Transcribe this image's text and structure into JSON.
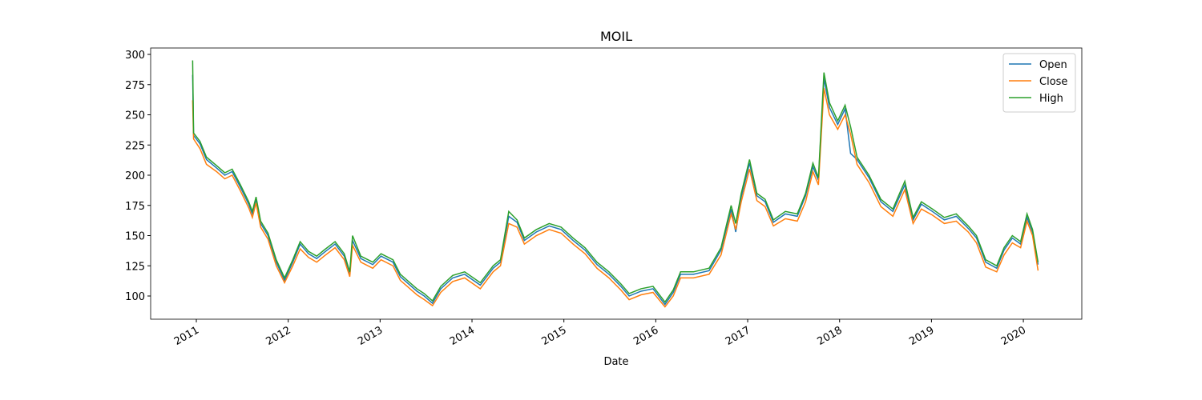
{
  "chart_data": {
    "type": "line",
    "title": "MOIL",
    "xlabel": "Date",
    "x": [
      2010.96,
      2010.97,
      2011.04,
      2011.11,
      2011.22,
      2011.31,
      2011.39,
      2011.48,
      2011.57,
      2011.61,
      2011.65,
      2011.7,
      2011.78,
      2011.87,
      2011.96,
      2012.05,
      2012.13,
      2012.22,
      2012.31,
      2012.39,
      2012.51,
      2012.61,
      2012.67,
      2012.7,
      2012.79,
      2012.92,
      2013.01,
      2013.14,
      2013.22,
      2013.31,
      2013.4,
      2013.48,
      2013.57,
      2013.66,
      2013.79,
      2013.92,
      2014.09,
      2014.23,
      2014.31,
      2014.4,
      2014.49,
      2014.57,
      2014.7,
      2014.84,
      2014.97,
      2015.1,
      2015.23,
      2015.36,
      2015.49,
      2015.62,
      2015.71,
      2015.84,
      2015.97,
      2016.1,
      2016.19,
      2016.27,
      2016.41,
      2016.58,
      2016.71,
      2016.82,
      2016.87,
      2016.93,
      2017.02,
      2017.1,
      2017.19,
      2017.28,
      2017.41,
      2017.54,
      2017.63,
      2017.71,
      2017.77,
      2017.83,
      2017.89,
      2017.98,
      2018.06,
      2018.12,
      2018.19,
      2018.32,
      2018.45,
      2018.58,
      2018.71,
      2018.8,
      2018.89,
      2019.01,
      2019.14,
      2019.27,
      2019.4,
      2019.49,
      2019.59,
      2019.71,
      2019.79,
      2019.88,
      2019.97,
      2020.04,
      2020.1,
      2020.16
    ],
    "series": [
      {
        "name": "Open",
        "color": "#1f77b4",
        "values": [
          283,
          233,
          226,
          213,
          206,
          200,
          203,
          190,
          176,
          168,
          180,
          160,
          150,
          128,
          113,
          128,
          143,
          135,
          131,
          136,
          143,
          133,
          118,
          146,
          131,
          126,
          133,
          128,
          116,
          110,
          104,
          100,
          94,
          106,
          115,
          118,
          109,
          123,
          128,
          166,
          161,
          146,
          153,
          158,
          155,
          146,
          138,
          126,
          118,
          108,
          100,
          104,
          106,
          93,
          103,
          118,
          118,
          121,
          138,
          172,
          153,
          182,
          210,
          183,
          178,
          161,
          168,
          166,
          183,
          207,
          196,
          280,
          256,
          242,
          255,
          218,
          213,
          198,
          178,
          170,
          192,
          163,
          176,
          170,
          163,
          166,
          156,
          148,
          128,
          123,
          138,
          148,
          143,
          165,
          153,
          126
        ]
      },
      {
        "name": "Close",
        "color": "#ff7f0e",
        "values": [
          262,
          230,
          222,
          209,
          203,
          197,
          200,
          187,
          173,
          165,
          177,
          157,
          147,
          125,
          111,
          125,
          139,
          132,
          128,
          133,
          140,
          130,
          116,
          142,
          128,
          123,
          130,
          125,
          113,
          107,
          101,
          97,
          92,
          103,
          112,
          115,
          106,
          120,
          125,
          160,
          157,
          143,
          150,
          155,
          152,
          143,
          135,
          123,
          115,
          105,
          97,
          101,
          103,
          91,
          100,
          115,
          115,
          118,
          134,
          168,
          155,
          178,
          205,
          179,
          174,
          158,
          164,
          162,
          178,
          203,
          192,
          272,
          250,
          238,
          250,
          234,
          209,
          194,
          174,
          166,
          188,
          160,
          172,
          167,
          160,
          162,
          153,
          144,
          124,
          120,
          134,
          144,
          140,
          162,
          150,
          121
        ]
      },
      {
        "name": "High",
        "color": "#2ca02c",
        "values": [
          295,
          235,
          228,
          215,
          208,
          202,
          205,
          192,
          178,
          170,
          182,
          162,
          152,
          130,
          115,
          130,
          145,
          137,
          133,
          138,
          145,
          135,
          120,
          150,
          133,
          128,
          135,
          130,
          118,
          112,
          106,
          102,
          96,
          108,
          117,
          120,
          111,
          125,
          130,
          170,
          163,
          148,
          155,
          160,
          157,
          148,
          140,
          128,
          120,
          110,
          102,
          106,
          108,
          95,
          105,
          120,
          120,
          123,
          140,
          175,
          160,
          185,
          213,
          185,
          180,
          163,
          170,
          168,
          185,
          210,
          198,
          285,
          260,
          245,
          258,
          240,
          215,
          200,
          180,
          172,
          195,
          165,
          178,
          172,
          165,
          168,
          158,
          150,
          130,
          125,
          140,
          150,
          145,
          168,
          155,
          128
        ]
      }
    ],
    "xlim": [
      2010.503,
      2020.636
    ],
    "xticks": [
      2011,
      2012,
      2013,
      2014,
      2015,
      2016,
      2017,
      2018,
      2019,
      2020
    ],
    "ylim": [
      80.8,
      305.3
    ],
    "yticks": [
      100,
      125,
      150,
      175,
      200,
      225,
      250,
      275,
      300
    ],
    "legend": "upper right"
  }
}
